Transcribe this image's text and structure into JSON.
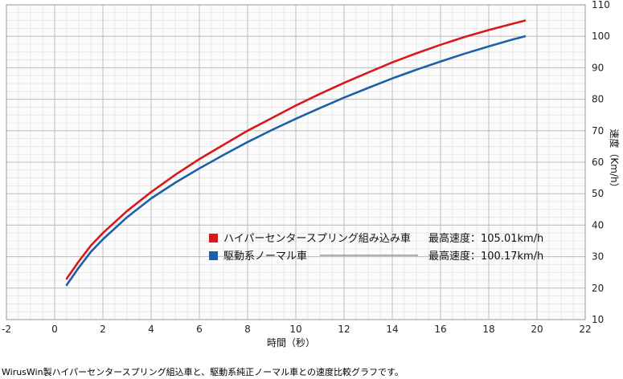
{
  "chart_data": {
    "type": "line",
    "xlabel": "時間（秒）",
    "ylabel": "速度（Km/h）",
    "xlim": [
      -2,
      22
    ],
    "ylim": [
      10,
      110
    ],
    "x_ticks": [
      -2,
      0,
      2,
      4,
      6,
      8,
      10,
      12,
      14,
      16,
      18,
      20,
      22
    ],
    "y_ticks": [
      10,
      20,
      30,
      40,
      50,
      60,
      70,
      80,
      90,
      100,
      110
    ],
    "y_axis_side": "right",
    "grid": true,
    "legend_position": "lower-right",
    "series": [
      {
        "name": "ハイパーセンタースプリング組み込み車",
        "color": "#d7191c",
        "max_label": "最高速度：105.01km/h",
        "x": [
          0.5,
          1,
          1.5,
          2,
          3,
          4,
          5,
          6,
          7,
          8,
          9,
          10,
          11,
          12,
          13,
          14,
          15,
          16,
          17,
          18,
          19,
          19.5
        ],
        "y": [
          23,
          28.5,
          33.5,
          37.5,
          44.5,
          50.5,
          56,
          61,
          65.5,
          70,
          74,
          78,
          81.7,
          85.2,
          88.5,
          91.7,
          94.6,
          97.3,
          99.8,
          102,
          104,
          105
        ]
      },
      {
        "name": "駆動系ノーマル車",
        "color": "#1f5fa8",
        "max_label": "最高速度：100.17km/h",
        "x": [
          0.5,
          1,
          1.5,
          2,
          3,
          4,
          5,
          6,
          7,
          8,
          9,
          10,
          11,
          12,
          13,
          14,
          15,
          16,
          17,
          18,
          19,
          19.5
        ],
        "y": [
          21,
          26.5,
          31.5,
          35.5,
          42.5,
          48.5,
          53.5,
          58,
          62.3,
          66.4,
          70.2,
          73.8,
          77.2,
          80.5,
          83.6,
          86.6,
          89.4,
          92,
          94.5,
          96.8,
          99,
          100
        ]
      }
    ]
  },
  "caption": "WirusWin製ハイパーセンタースプリング組込車と、駆動系純正ノーマル車との速度比較グラフです。",
  "colors": {
    "grid_major": "#bdbdbd",
    "grid_minor": "#dcdcdc",
    "plot_bg": "#fbfbfb"
  }
}
